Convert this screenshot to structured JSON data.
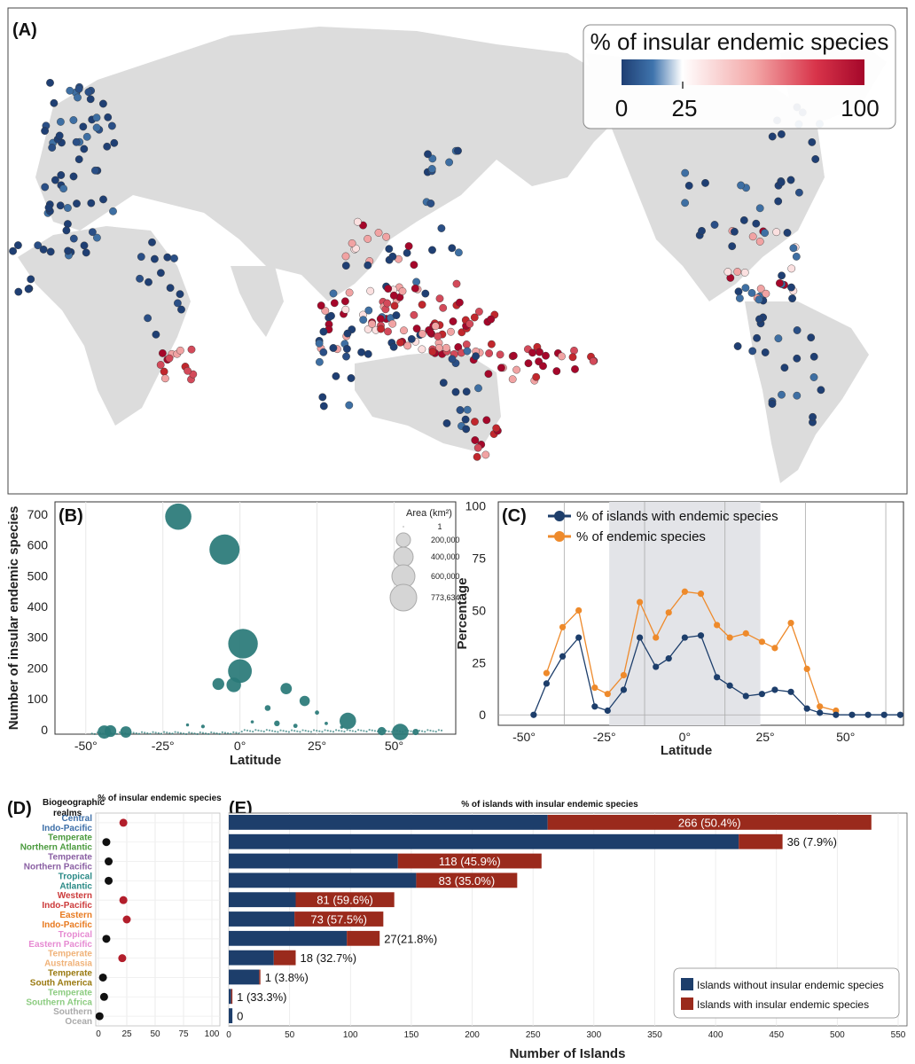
{
  "panels": {
    "a_label": "(A)",
    "b_label": "(B)",
    "c_label": "(C)",
    "d_label": "(D)",
    "e_label": "(E)"
  },
  "map_legend": {
    "title": "% of insular endemic species",
    "ticks": [
      "0",
      "25",
      "100"
    ],
    "colors": {
      "low": "#1f3f73",
      "mid": "#ffffff",
      "high": "#a5072a"
    }
  },
  "colors": {
    "teal": "#2a7a78",
    "blue": "#1d3e6b",
    "orange": "#ee8a2b",
    "red": "#9a2a1c",
    "land": "#dcdcdc",
    "shade": "#e3e4e8"
  },
  "chart_data": [
    {
      "id": "B",
      "type": "scatter",
      "xlabel": "Latitude",
      "ylabel": "Number of insular endemic species",
      "xlim": [
        -60,
        70
      ],
      "ylim": [
        -15,
        740
      ],
      "xticks": [
        "-50°",
        "-25°",
        "0°",
        "25°",
        "50°"
      ],
      "yticks": [
        "0",
        "100",
        "200",
        "300",
        "400",
        "500",
        "600",
        "700"
      ],
      "size_legend_title": "Area (km²)",
      "size_legend": [
        "1",
        "200,000",
        "400,000",
        "600,000",
        "773,634"
      ],
      "points": [
        {
          "lat": -20,
          "n": 692,
          "area": 587000
        },
        {
          "lat": -5,
          "n": 585,
          "area": 773634
        },
        {
          "lat": 1,
          "n": 279,
          "area": 743000
        },
        {
          "lat": 0,
          "n": 190,
          "area": 480000
        },
        {
          "lat": -7,
          "n": 148,
          "area": 120000
        },
        {
          "lat": -2,
          "n": 145,
          "area": 180000
        },
        {
          "lat": 15,
          "n": 133,
          "area": 110000
        },
        {
          "lat": 21,
          "n": 93,
          "area": 90000
        },
        {
          "lat": 35,
          "n": 28,
          "area": 230000
        },
        {
          "lat": 52,
          "n": -8,
          "area": 230000
        },
        {
          "lat": -44,
          "n": -8,
          "area": 150000
        },
        {
          "lat": -42,
          "n": -5,
          "area": 115000
        },
        {
          "lat": -37,
          "n": -8,
          "area": 110000
        },
        {
          "lat": 9,
          "n": 70,
          "area": 30000
        },
        {
          "lat": 12,
          "n": 20,
          "area": 28000
        },
        {
          "lat": 25,
          "n": 55,
          "area": 15000
        },
        {
          "lat": 28,
          "n": 20,
          "area": 10000
        },
        {
          "lat": -12,
          "n": 10,
          "area": 12000
        },
        {
          "lat": 33,
          "n": 8,
          "area": 9000
        },
        {
          "lat": 18,
          "n": 12,
          "area": 15000
        },
        {
          "lat": -17,
          "n": 15,
          "area": 8000
        },
        {
          "lat": 4,
          "n": 25,
          "area": 9000
        },
        {
          "lat": 46,
          "n": -5,
          "area": 60000
        },
        {
          "lat": 57,
          "n": -8,
          "area": 35000
        }
      ]
    },
    {
      "id": "C",
      "type": "line",
      "xlabel": "Latitude",
      "ylabel": "Percentage",
      "xlim": [
        -58,
        68
      ],
      "ylim": [
        -5,
        102
      ],
      "xticks": [
        "-50°",
        "-25°",
        "0°",
        "25°",
        "50°"
      ],
      "yticks": [
        "0",
        "25",
        "50",
        "75",
        "100"
      ],
      "shaded_range": [
        -23.5,
        23.5
      ],
      "x": [
        -52,
        -47,
        -43,
        -38,
        -33,
        -28,
        -24,
        -19,
        -14,
        -9,
        -5,
        0,
        5,
        10,
        14,
        19,
        24,
        28,
        33,
        38,
        42,
        47,
        52,
        57,
        62,
        67
      ],
      "series": [
        {
          "name": "% of islands with endemic species",
          "color": "#1d3e6b",
          "values": [
            null,
            0,
            15,
            28,
            37,
            4,
            2,
            12,
            37,
            23,
            27,
            37,
            38,
            18,
            14,
            9,
            10,
            12,
            11,
            3,
            1,
            0,
            0,
            0,
            0,
            0
          ]
        },
        {
          "name": "% of endemic species",
          "color": "#ee8a2b",
          "values": [
            null,
            null,
            20,
            42,
            50,
            13,
            10,
            19,
            54,
            37,
            49,
            59,
            58,
            43,
            37,
            39,
            35,
            32,
            44,
            22,
            4,
            2,
            null,
            null,
            null,
            null
          ]
        }
      ]
    },
    {
      "id": "D",
      "type": "scatter",
      "title": "% of insular endemic species",
      "ylabel": "Biogeographic realms",
      "xticks": [
        "0",
        "25",
        "50",
        "75",
        "100"
      ],
      "realms": [
        {
          "name": "Central Indo-Pacific",
          "value": 22,
          "high": true,
          "color": "#3d6fa8"
        },
        {
          "name": "Temperate Northern Atlantic",
          "value": 7,
          "high": false,
          "color": "#4a9a3d"
        },
        {
          "name": "Temperate Northern Pacific",
          "value": 9,
          "high": false,
          "color": "#8a5fa3"
        },
        {
          "name": "Tropical Atlantic",
          "value": 9,
          "high": false,
          "color": "#2a8a86"
        },
        {
          "name": "Western Indo-Pacific",
          "value": 22,
          "high": true,
          "color": "#cc3a3a"
        },
        {
          "name": "Eastern Indo-Pacific",
          "value": 25,
          "high": true,
          "color": "#e87a20"
        },
        {
          "name": "Tropical Eastern Pacific",
          "value": 7,
          "high": false,
          "color": "#e68ad2"
        },
        {
          "name": "Temperate Australasia",
          "value": 21,
          "high": true,
          "color": "#f0b278"
        },
        {
          "name": "Temperate South America",
          "value": 4,
          "high": false,
          "color": "#9a7a10"
        },
        {
          "name": "Temperate Southern Africa",
          "value": 5,
          "high": false,
          "color": "#8ccc80"
        },
        {
          "name": "Southern Ocean",
          "value": 1,
          "high": false,
          "color": "#aaaaaa"
        }
      ]
    },
    {
      "id": "E",
      "type": "bar",
      "title": "% of islands with insular endemic species",
      "xlabel": "Number of Islands",
      "xlim": [
        0,
        550
      ],
      "xticks": [
        "0",
        "50",
        "100",
        "150",
        "200",
        "250",
        "300",
        "350",
        "400",
        "450",
        "500",
        "550"
      ],
      "categories": [
        "Central Indo-Pacific",
        "Temperate Northern Atlantic",
        "Temperate Northern Pacific",
        "Tropical Atlantic",
        "Western Indo-Pacific",
        "Eastern Indo-Pacific",
        "Tropical Eastern Pacific",
        "Temperate Australasia",
        "Temperate South America",
        "Temperate Southern Africa",
        "Southern Ocean"
      ],
      "series": [
        {
          "name": "Islands without insular endemic species",
          "color": "#1d3e6b",
          "values": [
            262,
            419,
            139,
            154,
            55,
            54,
            97,
            37,
            25,
            2,
            3
          ]
        },
        {
          "name": "Islands with insular endemic species",
          "color": "#9a2a1c",
          "values": [
            266,
            36,
            118,
            83,
            81,
            73,
            27,
            18,
            1,
            1,
            0
          ]
        }
      ],
      "labels": [
        "266 (50.4%)",
        "36 (7.9%)",
        "118 (45.9%)",
        "83 (35.0%)",
        "81 (59.6%)",
        "73 (57.5%)",
        "27(21.8%)",
        "18 (32.7%)",
        "1 (3.8%)",
        "1 (33.3%)",
        "0"
      ],
      "label_inside": [
        true,
        false,
        true,
        true,
        true,
        true,
        false,
        false,
        false,
        false,
        false
      ]
    }
  ]
}
